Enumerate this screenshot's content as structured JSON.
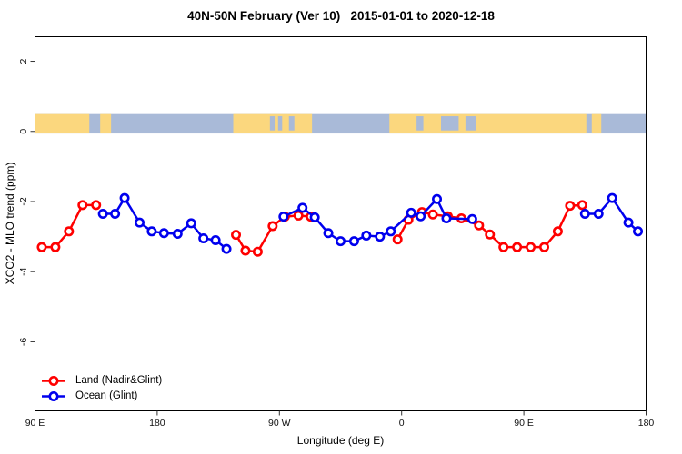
{
  "page": {
    "title_text": "40N-50N February (Ver 10)   2015-01-01 to 2020-12-18"
  },
  "chart_data": {
    "type": "line",
    "title": "40N-50N February (Ver 10)   2015-01-01 to 2020-12-18",
    "xlabel": "Longitude (deg E)",
    "ylabel": "XCO2 - MLO trend (ppm)",
    "x_axis_note": "longitude axis runs 90E eastward through 180, 90W, 0, 90E to 180 (450 deg, values past 180 wrap)",
    "xlim": [
      90,
      540
    ],
    "ylim": [
      -7.97,
      2.7
    ],
    "grid": false,
    "legend_position": "bottom-left",
    "x_ticks": [
      {
        "pos": 90,
        "label": "90 E"
      },
      {
        "pos": 180,
        "label": "180"
      },
      {
        "pos": 270,
        "label": "90 W"
      },
      {
        "pos": 360,
        "label": "0"
      },
      {
        "pos": 450,
        "label": "90 E"
      },
      {
        "pos": 540,
        "label": "180"
      }
    ],
    "y_ticks": [
      {
        "pos": 2,
        "label": "2"
      },
      {
        "pos": 0,
        "label": "0"
      },
      {
        "pos": -2,
        "label": "-2"
      },
      {
        "pos": -4,
        "label": "-4"
      },
      {
        "pos": -6,
        "label": "-6"
      }
    ],
    "map_strip": {
      "top_value": 0.52,
      "bottom_value": -0.06,
      "land_color": "#fbd77e",
      "ocean_color": "#a9bad8",
      "base": "ocean",
      "land_segments": [
        [
          90,
          130
        ],
        [
          138,
          146
        ],
        [
          236,
          294
        ],
        [
          351,
          496
        ],
        [
          500,
          507
        ]
      ],
      "water_overlays": [
        [
          263,
          266.5
        ],
        [
          269,
          272
        ],
        [
          277,
          281
        ],
        [
          371,
          376
        ],
        [
          389,
          402
        ],
        [
          407,
          414.5
        ]
      ]
    },
    "series": [
      {
        "name": "Land (Nadir&Glint)",
        "marker": "open-circle",
        "color": "#ff0000",
        "segments": [
          [
            [
              95,
              -3.3
            ],
            [
              105,
              -3.3
            ],
            [
              115,
              -2.85
            ],
            [
              125,
              -2.1
            ],
            [
              135,
              -2.1
            ]
          ],
          [
            [
              238,
              -2.95
            ],
            [
              245,
              -3.4
            ],
            [
              254,
              -3.43
            ],
            [
              265,
              -2.7
            ],
            [
              274,
              -2.43
            ],
            [
              284,
              -2.4
            ],
            [
              293,
              -2.43
            ]
          ],
          [
            [
              357,
              -3.08
            ],
            [
              365,
              -2.52
            ],
            [
              375,
              -2.3
            ],
            [
              383,
              -2.37
            ],
            [
              394,
              -2.42
            ],
            [
              404,
              -2.48
            ],
            [
              417,
              -2.68
            ],
            [
              425,
              -2.94
            ],
            [
              435,
              -3.3
            ],
            [
              445,
              -3.3
            ],
            [
              455,
              -3.3
            ],
            [
              465,
              -3.3
            ],
            [
              475,
              -2.85
            ],
            [
              484,
              -2.12
            ],
            [
              493,
              -2.1
            ]
          ]
        ]
      },
      {
        "name": "Ocean (Glint)",
        "marker": "open-circle",
        "color": "#0000ee",
        "segments": [
          [
            [
              140,
              -2.35
            ],
            [
              149,
              -2.35
            ],
            [
              156,
              -1.9
            ],
            [
              167,
              -2.6
            ],
            [
              176,
              -2.85
            ],
            [
              185,
              -2.9
            ],
            [
              195,
              -2.92
            ],
            [
              205,
              -2.62
            ],
            [
              214,
              -3.05
            ],
            [
              223,
              -3.1
            ],
            [
              231,
              -3.35
            ]
          ],
          [
            [
              273,
              -2.43
            ],
            [
              287,
              -2.18
            ],
            [
              296,
              -2.45
            ],
            [
              306,
              -2.9
            ],
            [
              315,
              -3.13
            ],
            [
              325,
              -3.13
            ],
            [
              334,
              -2.97
            ],
            [
              344,
              -3.0
            ],
            [
              352,
              -2.85
            ],
            [
              367,
              -2.32
            ],
            [
              374,
              -2.42
            ],
            [
              386,
              -1.93
            ],
            [
              393,
              -2.48
            ],
            [
              412,
              -2.5
            ]
          ],
          [
            [
              495,
              -2.35
            ],
            [
              505,
              -2.35
            ],
            [
              515,
              -1.9
            ],
            [
              527,
              -2.6
            ],
            [
              534,
              -2.85
            ]
          ]
        ]
      }
    ]
  },
  "legend": {
    "items": [
      {
        "label": "Land (Nadir&Glint)",
        "color": "#ff0000"
      },
      {
        "label": "Ocean (Glint)",
        "color": "#0000ee"
      }
    ]
  }
}
